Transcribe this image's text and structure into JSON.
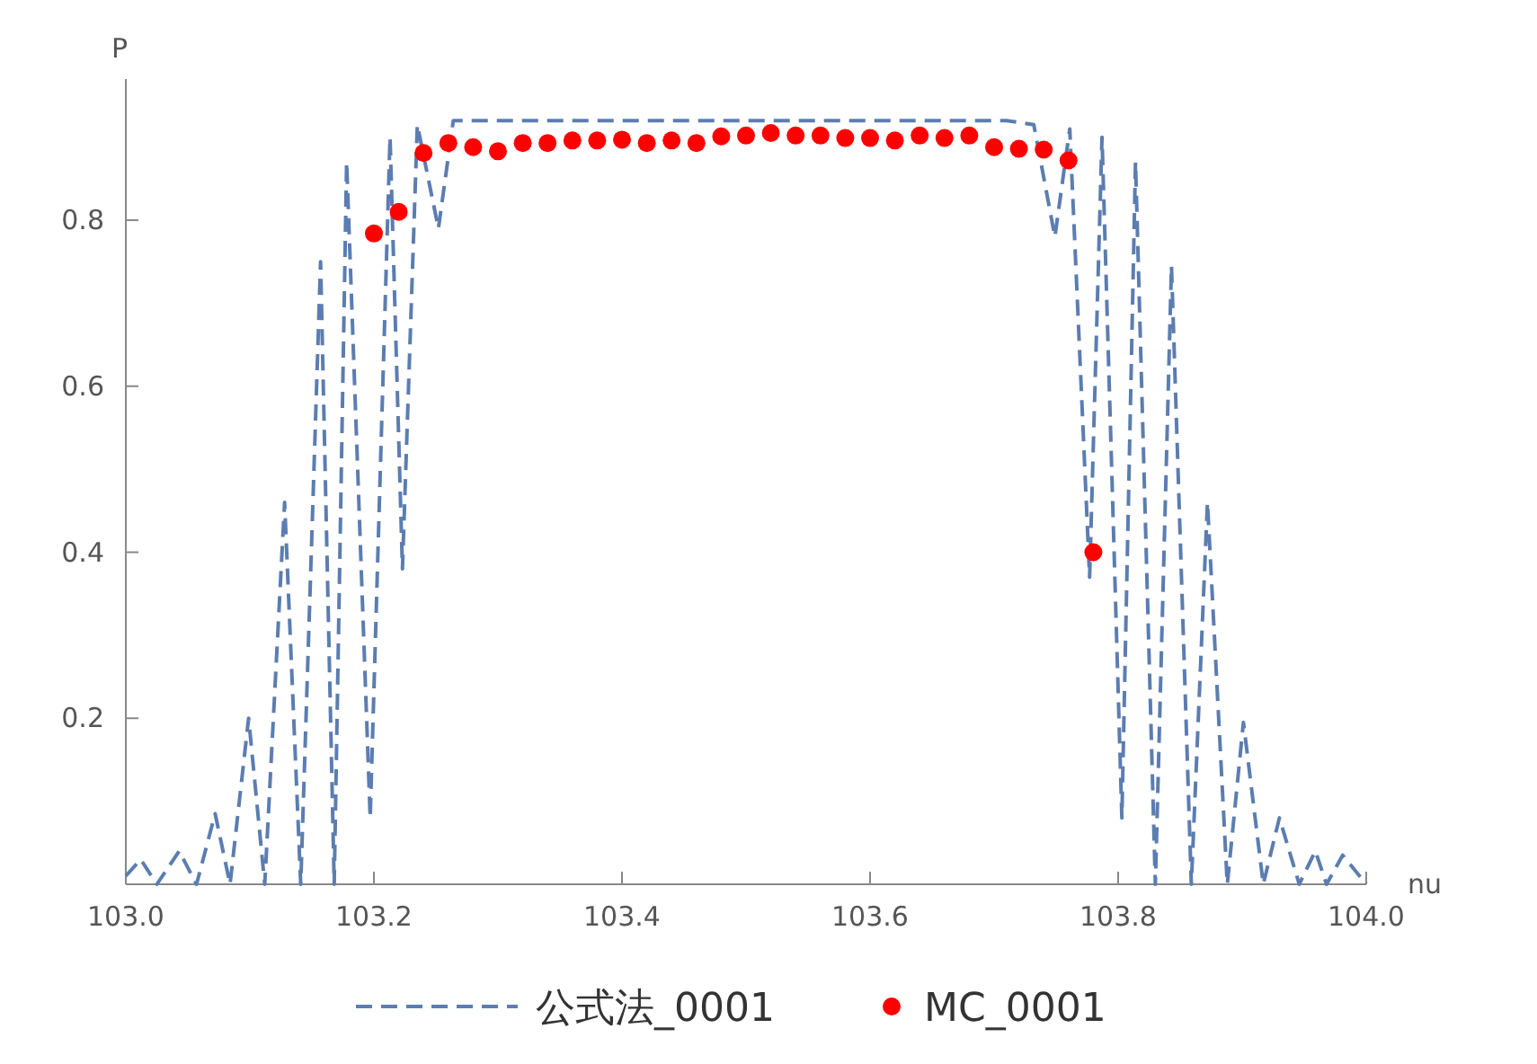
{
  "chart_data": {
    "type": "line",
    "xlabel": "nu",
    "ylabel": "P",
    "xlim": [
      103.0,
      104.0
    ],
    "ylim": [
      0,
      0.97
    ],
    "xticks": [
      {
        "value": 103.0,
        "label": "103.0"
      },
      {
        "value": 103.2,
        "label": "103.2"
      },
      {
        "value": 103.4,
        "label": "103.4"
      },
      {
        "value": 103.6,
        "label": "103.6"
      },
      {
        "value": 103.8,
        "label": "103.8"
      },
      {
        "value": 104.0,
        "label": "104.0"
      }
    ],
    "yticks": [
      0.2,
      0.4,
      0.6,
      0.8
    ],
    "grid": false,
    "legend": "bottom",
    "series": [
      {
        "name": "公式法_0001",
        "color": "#5b7db1",
        "line_style": "dashed",
        "x": [
          103.0,
          103.012,
          103.025,
          103.043,
          103.057,
          103.072,
          103.084,
          103.099,
          103.112,
          103.128,
          103.141,
          103.157,
          103.168,
          103.178,
          103.197,
          103.213,
          103.223,
          103.235,
          103.252,
          103.264,
          103.5,
          103.71,
          103.732,
          103.749,
          103.761,
          103.777,
          103.787,
          103.803,
          103.814,
          103.83,
          103.843,
          103.859,
          103.872,
          103.888,
          103.901,
          103.917,
          103.93,
          103.946,
          103.959,
          103.968,
          103.981,
          104.0
        ],
        "values": [
          0.01,
          0.03,
          0,
          0.04,
          0,
          0.085,
          0,
          0.2,
          0,
          0.46,
          0,
          0.75,
          0,
          0.87,
          0.08,
          0.9,
          0.38,
          0.915,
          0.79,
          0.92,
          0.92,
          0.92,
          0.915,
          0.78,
          0.91,
          0.37,
          0.9,
          0.08,
          0.87,
          0,
          0.745,
          0,
          0.46,
          0,
          0.195,
          0,
          0.08,
          0,
          0.04,
          0,
          0.035,
          0
        ]
      },
      {
        "name": "MC_0001",
        "type": "scatter",
        "color": "#ff0000",
        "marker": "circle",
        "x": [
          103.2,
          103.22,
          103.24,
          103.26,
          103.28,
          103.3,
          103.32,
          103.34,
          103.36,
          103.38,
          103.4,
          103.42,
          103.44,
          103.46,
          103.48,
          103.5,
          103.52,
          103.54,
          103.56,
          103.58,
          103.6,
          103.62,
          103.64,
          103.66,
          103.68,
          103.7,
          103.72,
          103.74,
          103.76,
          103.78
        ],
        "values": [
          0.784,
          0.81,
          0.881,
          0.893,
          0.888,
          0.883,
          0.893,
          0.893,
          0.896,
          0.896,
          0.897,
          0.893,
          0.896,
          0.893,
          0.901,
          0.902,
          0.905,
          0.902,
          0.902,
          0.899,
          0.899,
          0.896,
          0.902,
          0.899,
          0.902,
          0.888,
          0.886,
          0.885,
          0.872,
          0.4
        ]
      }
    ]
  }
}
